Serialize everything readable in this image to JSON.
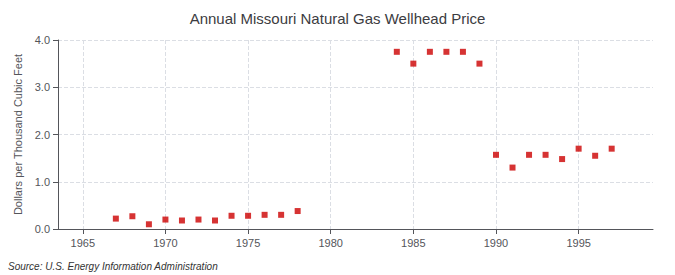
{
  "chart_data": {
    "type": "scatter",
    "title": "Annual Missouri Natural Gas Wellhead Price",
    "ylabel": "Dollars per Thousand Cubic Feet",
    "annotations": [
      "Source: U.S. Energy Information Administration"
    ],
    "x": [
      1967,
      1968,
      1969,
      1970,
      1971,
      1972,
      1973,
      1974,
      1975,
      1976,
      1977,
      1978,
      1984,
      1985,
      1986,
      1987,
      1988,
      1989,
      1990,
      1991,
      1992,
      1993,
      1994,
      1995,
      1996,
      1997
    ],
    "values": [
      0.22,
      0.27,
      0.1,
      0.2,
      0.18,
      0.2,
      0.18,
      0.28,
      0.28,
      0.3,
      0.3,
      0.38,
      3.75,
      3.5,
      3.75,
      3.75,
      3.75,
      3.5,
      1.57,
      1.3,
      1.57,
      1.57,
      1.48,
      1.7,
      1.55,
      1.7
    ],
    "color": "#cc0000",
    "marker": "square",
    "xlim": [
      1963.5,
      1999.5
    ],
    "xticks": [
      1965,
      1970,
      1975,
      1980,
      1985,
      1990,
      1995
    ],
    "ylim": [
      0.0,
      4.0
    ],
    "yticks": [
      {
        "value": 0,
        "label": "0.0"
      },
      {
        "value": 1,
        "label": "1.0"
      },
      {
        "value": 2,
        "label": "2.0"
      },
      {
        "value": 3,
        "label": "3.0"
      },
      {
        "value": 4,
        "label": "4.0"
      }
    ],
    "grid": true
  }
}
